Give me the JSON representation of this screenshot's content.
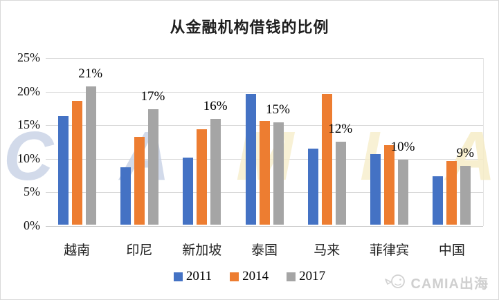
{
  "title": "从金融机构借钱的比例",
  "chart_data": {
    "type": "bar",
    "title": "从金融机构借钱的比例",
    "categories": [
      "越南",
      "印尼",
      "新加坡",
      "泰国",
      "马来",
      "菲律宾",
      "中国"
    ],
    "series": [
      {
        "name": "2011",
        "color": "#4472C4",
        "values": [
          16.2,
          8.5,
          10.0,
          19.4,
          11.3,
          10.5,
          7.2
        ]
      },
      {
        "name": "2014",
        "color": "#ED7D31",
        "values": [
          18.4,
          13.1,
          14.2,
          15.4,
          19.5,
          11.8,
          9.5
        ]
      },
      {
        "name": "2017",
        "color": "#A5A5A5",
        "values": [
          20.6,
          17.2,
          15.7,
          15.2,
          12.4,
          9.7,
          8.7
        ]
      }
    ],
    "data_labels": {
      "series": "2017",
      "values": [
        "21%",
        "17%",
        "16%",
        "15%",
        "12%",
        "10%",
        "9%"
      ]
    },
    "xlabel": "",
    "ylabel": "",
    "ylim": [
      0,
      25
    ],
    "yticks": [
      "0%",
      "5%",
      "10%",
      "15%",
      "20%",
      "25%"
    ],
    "grid": true,
    "legend_position": "bottom"
  },
  "watermark": {
    "big_text": "CAMIA",
    "letter_colors": [
      "#c8d2e6",
      "#c8d2e6",
      "#f7eecb",
      "#f7eecb",
      "#f6ecc4"
    ],
    "footer_text": "CAMIA出海",
    "footer_color": "#cfcfcf",
    "footer_icon": "chick-logo-icon"
  },
  "colors": {
    "gridline": "#d9d9d9",
    "axis_line": "#c8c8c8",
    "title_text": "#1f1f1f"
  }
}
